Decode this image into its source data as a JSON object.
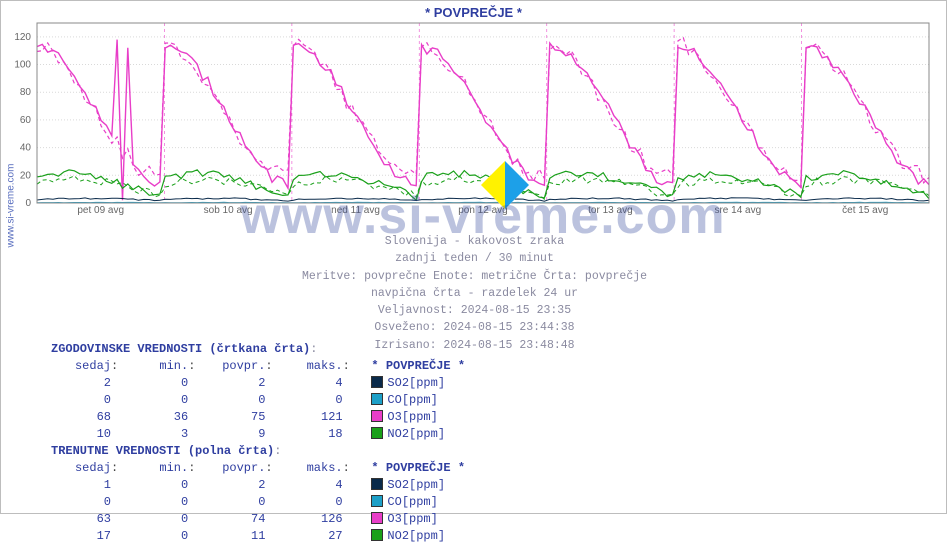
{
  "title": "* POVPREČJE *",
  "ylabel": "www.si-vreme.com",
  "watermark": "www.si-vreme.com",
  "chart": {
    "type": "line",
    "background_color": "#ffffff",
    "grid_color": "#d9d9d9",
    "grid_style": "dotted",
    "day_line_color": "#e83ec8",
    "day_line_style": "dashed",
    "ylim": [
      0,
      130
    ],
    "yticks": [
      0,
      20,
      40,
      60,
      80,
      100,
      120
    ],
    "xticks": [
      "pet 09 avg",
      "sob 10 avg",
      "ned 11 avg",
      "pon 12 avg",
      "tor 13 avg",
      "sre 14 avg",
      "čet 15 avg"
    ],
    "n_points": 168,
    "series": [
      {
        "name": "O3_hist",
        "color": "#e83ec8",
        "dash": true,
        "width": 1.2,
        "base": 68,
        "amp": 48,
        "phase": 0.55,
        "noise": 6
      },
      {
        "name": "O3_curr",
        "color": "#e83ec8",
        "dash": false,
        "width": 1.4,
        "base": 62,
        "amp": 50,
        "phase": 0.5,
        "noise": 4
      },
      {
        "name": "NO2_hist",
        "color": "#1aa01a",
        "dash": true,
        "width": 1.0,
        "base": 9,
        "amp": 8,
        "phase": 0.2,
        "noise": 3
      },
      {
        "name": "NO2_curr",
        "color": "#1aa01a",
        "dash": false,
        "width": 1.2,
        "base": 11,
        "amp": 10,
        "phase": 0.25,
        "noise": 3
      },
      {
        "name": "SO2_curr",
        "color": "#0a2a4a",
        "dash": false,
        "width": 1.0,
        "base": 2,
        "amp": 1.3,
        "phase": 0.1,
        "noise": 0.5
      },
      {
        "name": "CO_curr",
        "color": "#1da0c8",
        "dash": false,
        "width": 1.0,
        "base": 0.2,
        "amp": 0.2,
        "phase": 0,
        "noise": 0.1
      }
    ],
    "spikes": [
      {
        "series": "O3_curr",
        "x_index": 16,
        "low": 2,
        "high": 118
      }
    ]
  },
  "meta": {
    "line1": "Slovenija - kakovost zraka",
    "line2": "zadnji teden / 30 minut",
    "line3": "Meritve: povprečne  Enote: metrične  Črta: povprečje",
    "line4": "navpična črta - razdelek 24 ur",
    "line5": "Veljavnost: 2024-08-15 23:35",
    "line6": "Osveženo: 2024-08-15 23:44:38",
    "line7": "Izrisano: 2024-08-15 23:48:48"
  },
  "hist": {
    "header": "ZGODOVINSKE VREDNOSTI (črtkana črta)",
    "cols": [
      "sedaj",
      "min.",
      "povpr.",
      "maks."
    ],
    "legend_title": "* POVPREČJE *",
    "rows": [
      {
        "sedaj": "2",
        "min": "0",
        "povpr": "2",
        "maks": "4",
        "label": "SO2[ppm]",
        "swatch": "#0a2a4a"
      },
      {
        "sedaj": "0",
        "min": "0",
        "povpr": "0",
        "maks": "0",
        "label": "CO[ppm]",
        "swatch": "#1da0c8"
      },
      {
        "sedaj": "68",
        "min": "36",
        "povpr": "75",
        "maks": "121",
        "label": "O3[ppm]",
        "swatch": "#e83ec8"
      },
      {
        "sedaj": "10",
        "min": "3",
        "povpr": "9",
        "maks": "18",
        "label": "NO2[ppm]",
        "swatch": "#1aa01a"
      }
    ]
  },
  "curr": {
    "header": "TRENUTNE VREDNOSTI (polna črta)",
    "cols": [
      "sedaj",
      "min.",
      "povpr.",
      "maks."
    ],
    "legend_title": "* POVPREČJE *",
    "rows": [
      {
        "sedaj": "1",
        "min": "0",
        "povpr": "2",
        "maks": "4",
        "label": "SO2[ppm]",
        "swatch": "#0a2a4a"
      },
      {
        "sedaj": "0",
        "min": "0",
        "povpr": "0",
        "maks": "0",
        "label": "CO[ppm]",
        "swatch": "#1da0c8"
      },
      {
        "sedaj": "63",
        "min": "0",
        "povpr": "74",
        "maks": "126",
        "label": "O3[ppm]",
        "swatch": "#e83ec8"
      },
      {
        "sedaj": "17",
        "min": "0",
        "povpr": "11",
        "maks": "27",
        "label": "NO2[ppm]",
        "swatch": "#1aa01a"
      }
    ]
  },
  "colon": ":"
}
